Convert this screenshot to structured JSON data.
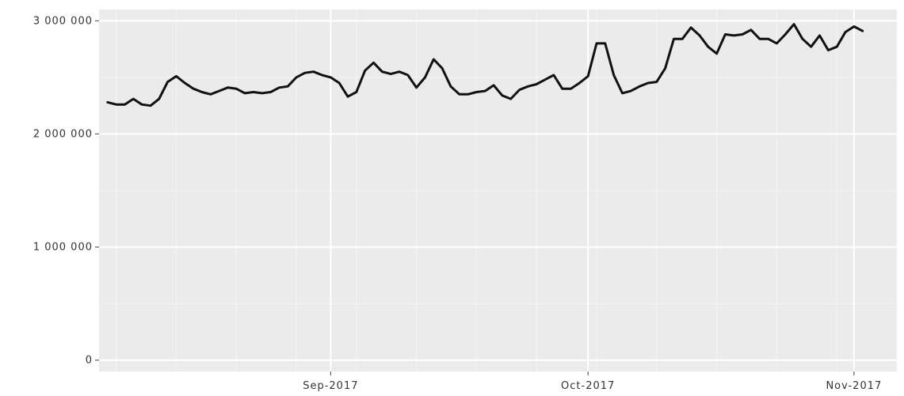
{
  "chart_data": {
    "type": "line",
    "title": "",
    "xlabel": "",
    "ylabel": "",
    "grid": true,
    "legend": "none",
    "colors": {
      "panel_bg": "#ebebeb",
      "grid_major": "#ffffff",
      "grid_minor": "#f5f5f5",
      "line": "#111111",
      "tick_label": "#333333"
    },
    "xlim": [
      "2017-08-05",
      "2017-11-06"
    ],
    "ylim": [
      -100000,
      3100000
    ],
    "x_ticks": [
      {
        "date": "2017-09-01",
        "label": "Sep-2017"
      },
      {
        "date": "2017-10-01",
        "label": "Oct-2017"
      },
      {
        "date": "2017-11-01",
        "label": "Nov-2017"
      }
    ],
    "y_ticks": [
      {
        "value": 0,
        "label": "0"
      },
      {
        "value": 1000000,
        "label": "1 000 000"
      },
      {
        "value": 2000000,
        "label": "2 000 000"
      },
      {
        "value": 3000000,
        "label": "3 000 000"
      }
    ],
    "series": [
      {
        "x": [
          "2017-08-06",
          "2017-08-07",
          "2017-08-08",
          "2017-08-09",
          "2017-08-10",
          "2017-08-11",
          "2017-08-12",
          "2017-08-13",
          "2017-08-14",
          "2017-08-15",
          "2017-08-16",
          "2017-08-17",
          "2017-08-18",
          "2017-08-19",
          "2017-08-20",
          "2017-08-21",
          "2017-08-22",
          "2017-08-23",
          "2017-08-24",
          "2017-08-25",
          "2017-08-26",
          "2017-08-27",
          "2017-08-28",
          "2017-08-29",
          "2017-08-30",
          "2017-08-31",
          "2017-09-01",
          "2017-09-02",
          "2017-09-03",
          "2017-09-04",
          "2017-09-05",
          "2017-09-06",
          "2017-09-07",
          "2017-09-08",
          "2017-09-09",
          "2017-09-10",
          "2017-09-11",
          "2017-09-12",
          "2017-09-13",
          "2017-09-14",
          "2017-09-15",
          "2017-09-16",
          "2017-09-17",
          "2017-09-18",
          "2017-09-19",
          "2017-09-20",
          "2017-09-21",
          "2017-09-22",
          "2017-09-23",
          "2017-09-24",
          "2017-09-25",
          "2017-09-26",
          "2017-09-27",
          "2017-09-28",
          "2017-09-29",
          "2017-09-30",
          "2017-10-01",
          "2017-10-02",
          "2017-10-03",
          "2017-10-04",
          "2017-10-05",
          "2017-10-06",
          "2017-10-07",
          "2017-10-08",
          "2017-10-09",
          "2017-10-10",
          "2017-10-11",
          "2017-10-12",
          "2017-10-13",
          "2017-10-14",
          "2017-10-15",
          "2017-10-16",
          "2017-10-17",
          "2017-10-18",
          "2017-10-19",
          "2017-10-20",
          "2017-10-21",
          "2017-10-22",
          "2017-10-23",
          "2017-10-24",
          "2017-10-25",
          "2017-10-26",
          "2017-10-27",
          "2017-10-28",
          "2017-10-29",
          "2017-10-30",
          "2017-10-31",
          "2017-11-01",
          "2017-11-02",
          "2017-11-03",
          "2017-11-04"
        ],
        "values": [
          2280000,
          2260000,
          2260000,
          2310000,
          2260000,
          2250000,
          2310000,
          2460000,
          2510000,
          2450000,
          2400000,
          2370000,
          2350000,
          2380000,
          2410000,
          2400000,
          2360000,
          2370000,
          2360000,
          2370000,
          2410000,
          2420000,
          2500000,
          2540000,
          2550000,
          2520000,
          2500000,
          2450000,
          2330000,
          2370000,
          2560000,
          2630000,
          2550000,
          2530000,
          2550000,
          2520000,
          2410000,
          2500000,
          2660000,
          2580000,
          2420000,
          2350000,
          2350000,
          2370000,
          2380000,
          2430000,
          2340000,
          2310000,
          2390000,
          2420000,
          2440000,
          2480000,
          2520000,
          2400000,
          2400000,
          2450000,
          2510000,
          2800000,
          2800000,
          2520000,
          2360000,
          2380000,
          2420000,
          2450000,
          2460000,
          2580000,
          2840000,
          2840000,
          2940000,
          2870000,
          2770000,
          2710000,
          2880000,
          2870000,
          2880000,
          2920000,
          2840000,
          2840000,
          2800000,
          2880000,
          2970000,
          2840000,
          2770000,
          2870000,
          2740000,
          2770000,
          2900000,
          2950000,
          2910000,
          null,
          null
        ]
      }
    ]
  }
}
